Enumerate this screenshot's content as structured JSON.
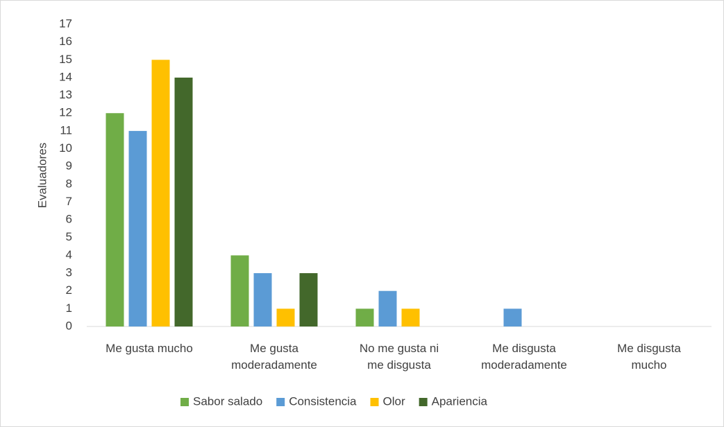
{
  "chart_data": {
    "type": "bar",
    "y_label": "Evaluadores",
    "categories": [
      "Me gusta mucho",
      "Me gusta moderadamente",
      "No me gusta ni me disgusta",
      "Me disgusta moderadamente",
      "Me disgusta mucho"
    ],
    "series": [
      {
        "name": "Sabor salado",
        "color": "#70ad47",
        "values": [
          12,
          4,
          1,
          0,
          0
        ]
      },
      {
        "name": "Consistencia",
        "color": "#5b9bd5",
        "values": [
          11,
          3,
          2,
          1,
          0
        ]
      },
      {
        "name": "Olor",
        "color": "#ffc000",
        "values": [
          15,
          1,
          1,
          0,
          0
        ]
      },
      {
        "name": "Apariencia",
        "color": "#43682b",
        "values": [
          14,
          3,
          0,
          0,
          0
        ]
      }
    ],
    "ylim": [
      0,
      17
    ],
    "yticks": [
      0,
      1,
      2,
      3,
      4,
      5,
      6,
      7,
      8,
      9,
      10,
      11,
      12,
      13,
      14,
      15,
      16,
      17
    ],
    "grid": false,
    "legend": "bottom"
  }
}
